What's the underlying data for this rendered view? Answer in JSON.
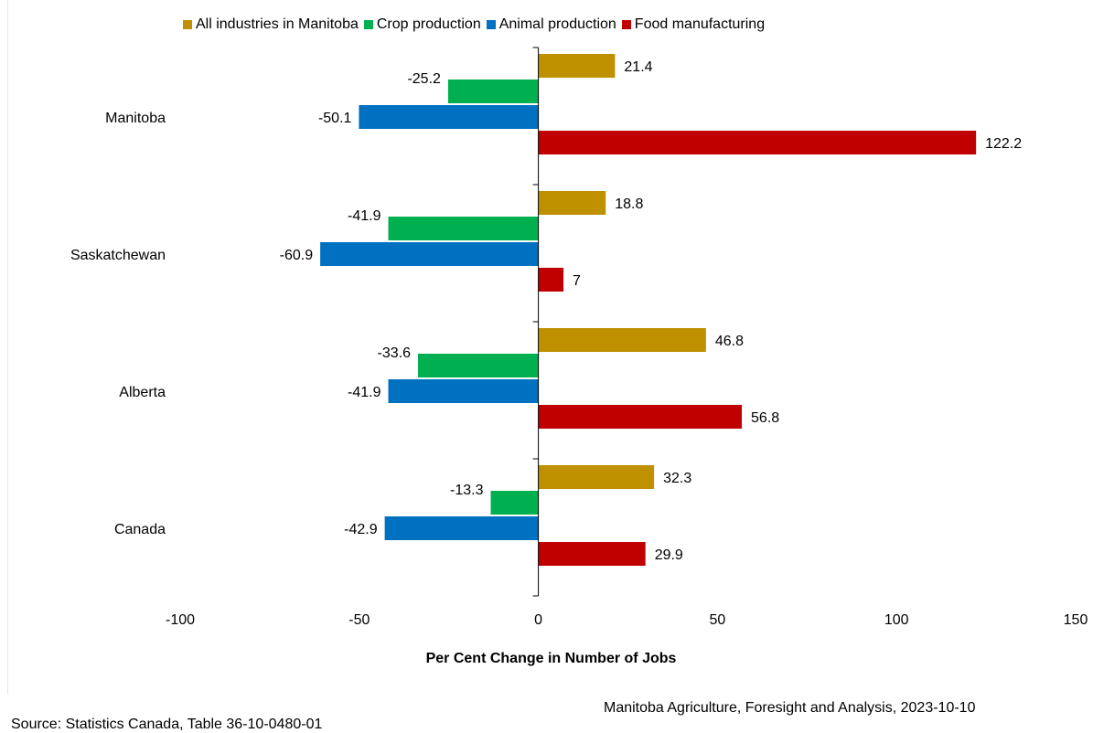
{
  "chart_data": {
    "type": "bar",
    "orientation": "horizontal",
    "categories": [
      "Manitoba",
      "Saskatchewan",
      "Alberta",
      "Canada"
    ],
    "series": [
      {
        "name": "All industries in Manitoba",
        "color": "#BF9000",
        "values": [
          21.4,
          18.8,
          46.8,
          32.3
        ]
      },
      {
        "name": "Crop production",
        "color": "#00B050",
        "values": [
          -25.2,
          -41.9,
          -33.6,
          -13.3
        ]
      },
      {
        "name": "Animal production",
        "color": "#0070C0",
        "values": [
          -50.1,
          -60.9,
          -41.9,
          -42.9
        ]
      },
      {
        "name": "Food manufacturing",
        "color": "#C00000",
        "values": [
          122.2,
          7,
          56.8,
          29.9
        ]
      }
    ],
    "value_labels": [
      [
        "21.4",
        "18.8",
        "46.8",
        "32.3"
      ],
      [
        "-25.2",
        "-41.9",
        "-33.6",
        "-13.3"
      ],
      [
        "-50.1",
        "-60.9",
        "-41.9",
        "-42.9"
      ],
      [
        "122.2",
        "7",
        "56.8",
        "29.9"
      ]
    ],
    "xlim": [
      -100,
      150
    ],
    "xticks": [
      "-100",
      "-50",
      "0",
      "50",
      "100",
      "150"
    ],
    "xlabel": "Per Cent Change in Number of Jobs",
    "legend_position": "top",
    "grid": false
  },
  "credit": "Manitoba Agriculture, Foresight and Analysis, 2023-10-10",
  "source": "Source: Statistics Canada, Table 36-10-0480-01"
}
